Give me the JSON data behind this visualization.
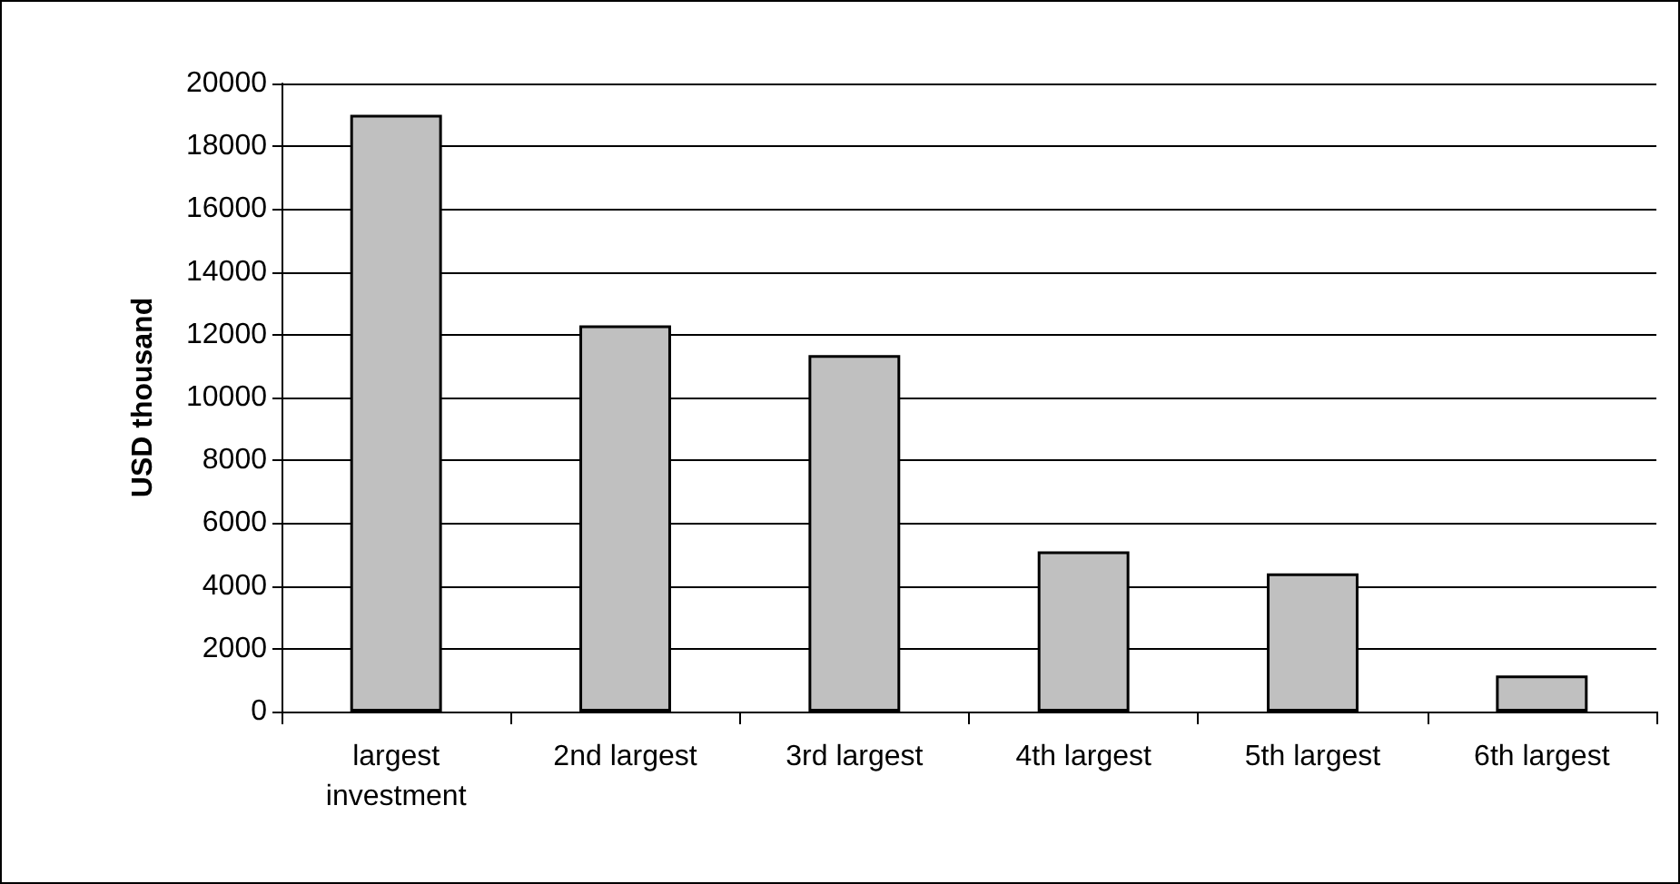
{
  "chart_data": {
    "type": "bar",
    "ylabel": "USD thousand",
    "categories": [
      "largest\ninvestment",
      "2nd largest",
      "3rd largest",
      "4th largest",
      "5th largest",
      "6th largest"
    ],
    "values": [
      19000,
      12300,
      11350,
      5100,
      4400,
      1150
    ],
    "color": "#c0c0c0",
    "ylim": [
      0,
      20000
    ],
    "yticks": [
      0,
      2000,
      4000,
      6000,
      8000,
      10000,
      12000,
      14000,
      16000,
      18000,
      20000
    ],
    "grid": "y"
  }
}
